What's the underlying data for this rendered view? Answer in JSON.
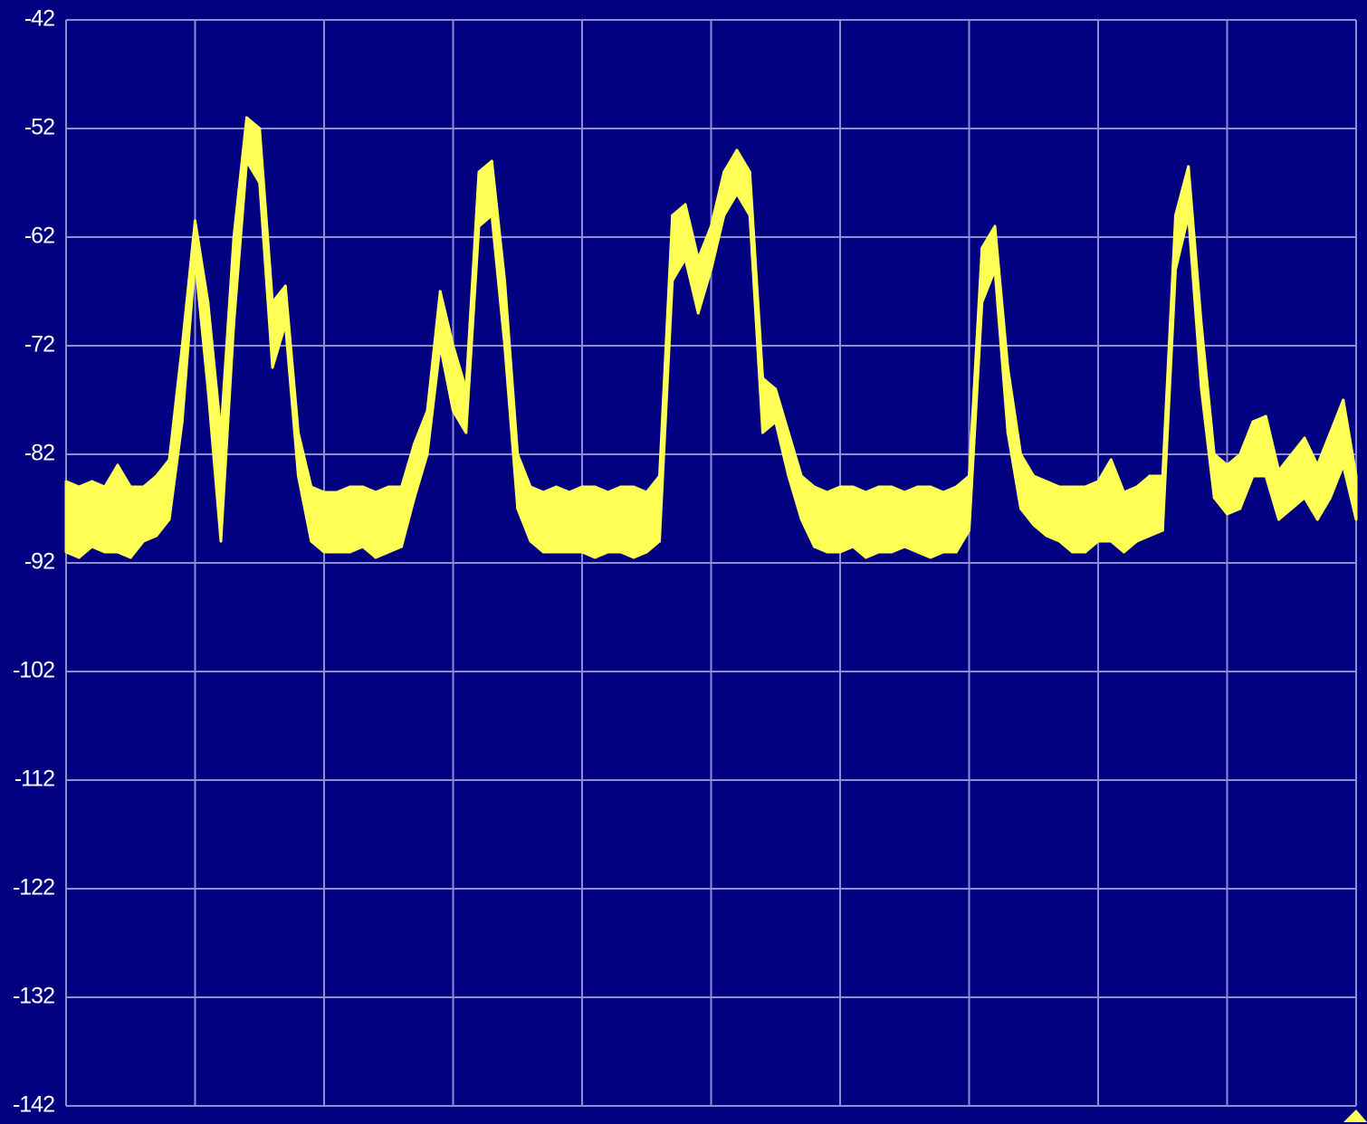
{
  "chart_data": {
    "type": "band",
    "color": "#ffff55",
    "background": "#000080",
    "grid_color": "#8c8cd8",
    "grid": true,
    "x_divisions": 10,
    "ylim": [
      -142,
      -42
    ],
    "yticks": [
      -42,
      -52,
      -62,
      -72,
      -82,
      -92,
      -102,
      -112,
      -122,
      -132,
      -142
    ],
    "high": [
      -84.5,
      -85,
      -84.5,
      -85,
      -83,
      -85,
      -85,
      -84,
      -82.5,
      -72,
      -60.5,
      -68,
      -80,
      -62,
      -51,
      -52,
      -68,
      -66.5,
      -80,
      -85,
      -85.5,
      -85.5,
      -85,
      -85,
      -85.5,
      -85,
      -85,
      -81,
      -78,
      -67,
      -72,
      -76,
      -56,
      -55,
      -66,
      -82,
      -85,
      -85.5,
      -85,
      -85.5,
      -85,
      -85,
      -85.5,
      -85,
      -85,
      -85.5,
      -84,
      -60,
      -59,
      -64,
      -61,
      -56,
      -54,
      -56,
      -75,
      -76,
      -80,
      -84,
      -85,
      -85.5,
      -85,
      -85,
      -85.5,
      -85,
      -85,
      -85.5,
      -85,
      -85,
      -85.5,
      -85,
      -84,
      -63,
      -61,
      -74,
      -82,
      -84,
      -84.5,
      -85,
      -85,
      -85,
      -84.5,
      -82.5,
      -85.5,
      -85,
      -84,
      -84,
      -60,
      -55.5,
      -70,
      -82,
      -83,
      -82,
      -79,
      -78.5,
      -83.5,
      -82,
      -80.5,
      -83,
      -80,
      -77,
      -84
    ],
    "low": [
      -91,
      -91.5,
      -90.5,
      -91,
      -91,
      -91.5,
      -90,
      -89.5,
      -88,
      -79,
      -64,
      -76,
      -90,
      -70,
      -55,
      -57,
      -74,
      -70,
      -84,
      -90,
      -91,
      -91,
      -91,
      -90.5,
      -91.5,
      -91,
      -90.5,
      -86,
      -82,
      -72,
      -78,
      -80,
      -61,
      -60,
      -72,
      -87,
      -90,
      -91,
      -91,
      -91,
      -91,
      -91.5,
      -91,
      -91,
      -91.5,
      -91,
      -90,
      -66,
      -64,
      -69,
      -65,
      -60,
      -58,
      -60,
      -80,
      -79,
      -84,
      -88,
      -90.5,
      -91,
      -91,
      -90.5,
      -91.5,
      -91,
      -91,
      -90.5,
      -91,
      -91.5,
      -91,
      -91,
      -89,
      -68,
      -65,
      -80,
      -87,
      -88.5,
      -89.5,
      -90,
      -91,
      -91,
      -90,
      -90,
      -91,
      -90,
      -89.5,
      -89,
      -65,
      -60,
      -76,
      -86,
      -87.5,
      -87,
      -84,
      -84,
      -88,
      -87,
      -86,
      -88,
      -86,
      -83,
      -88
    ]
  }
}
